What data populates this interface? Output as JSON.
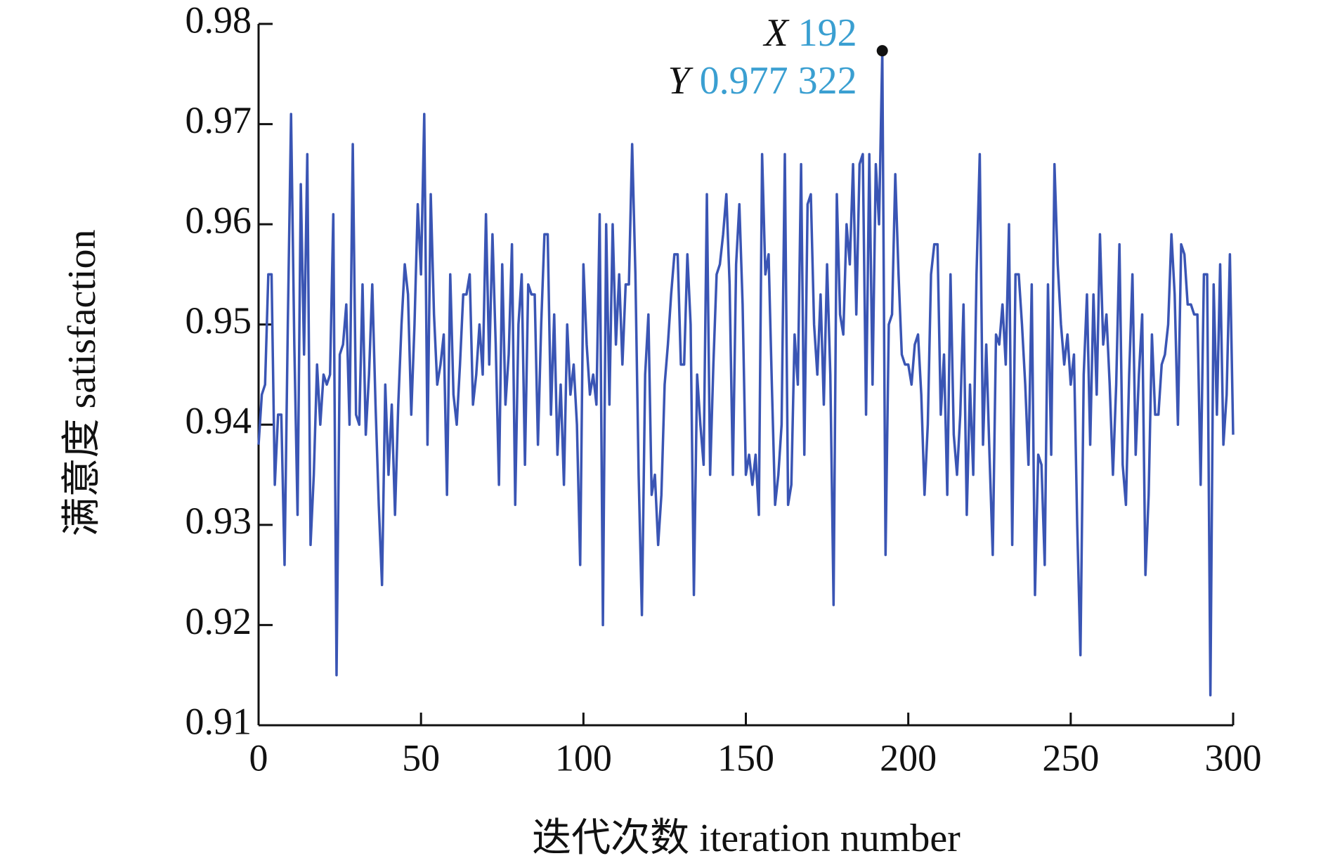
{
  "chart_data": {
    "type": "line",
    "ylabel": "满意度 satisfaction",
    "xlabel": "迭代次数 iteration number",
    "xlim": [
      0,
      300
    ],
    "xticks": [
      0,
      50,
      100,
      150,
      200,
      250,
      300
    ],
    "ylim": [
      0.91,
      0.98
    ],
    "yticks": [
      0.91,
      0.92,
      0.93,
      0.94,
      0.95,
      0.96,
      0.97,
      0.98
    ],
    "x": [
      0,
      1,
      2,
      3,
      4,
      5,
      6,
      7,
      8,
      9,
      10,
      11,
      12,
      13,
      14,
      15,
      16,
      17,
      18,
      19,
      20,
      21,
      22,
      23,
      24,
      25,
      26,
      27,
      28,
      29,
      30,
      31,
      32,
      33,
      34,
      35,
      36,
      37,
      38,
      39,
      40,
      41,
      42,
      43,
      44,
      45,
      46,
      47,
      48,
      49,
      50,
      51,
      52,
      53,
      54,
      55,
      56,
      57,
      58,
      59,
      60,
      61,
      62,
      63,
      64,
      65,
      66,
      67,
      68,
      69,
      70,
      71,
      72,
      73,
      74,
      75,
      76,
      77,
      78,
      79,
      80,
      81,
      82,
      83,
      84,
      85,
      86,
      87,
      88,
      89,
      90,
      91,
      92,
      93,
      94,
      95,
      96,
      97,
      98,
      99,
      100,
      101,
      102,
      103,
      104,
      105,
      106,
      107,
      108,
      109,
      110,
      111,
      112,
      113,
      114,
      115,
      116,
      117,
      118,
      119,
      120,
      121,
      122,
      123,
      124,
      125,
      126,
      127,
      128,
      129,
      130,
      131,
      132,
      133,
      134,
      135,
      136,
      137,
      138,
      139,
      140,
      141,
      142,
      143,
      144,
      145,
      146,
      147,
      148,
      149,
      150,
      151,
      152,
      153,
      154,
      155,
      156,
      157,
      158,
      159,
      160,
      161,
      162,
      163,
      164,
      165,
      166,
      167,
      168,
      169,
      170,
      171,
      172,
      173,
      174,
      175,
      176,
      177,
      178,
      179,
      180,
      181,
      182,
      183,
      184,
      185,
      186,
      187,
      188,
      189,
      190,
      191,
      192,
      193,
      194,
      195,
      196,
      197,
      198,
      199,
      200,
      201,
      202,
      203,
      204,
      205,
      206,
      207,
      208,
      209,
      210,
      211,
      212,
      213,
      214,
      215,
      216,
      217,
      218,
      219,
      220,
      221,
      222,
      223,
      224,
      225,
      226,
      227,
      228,
      229,
      230,
      231,
      232,
      233,
      234,
      235,
      236,
      237,
      238,
      239,
      240,
      241,
      242,
      243,
      244,
      245,
      246,
      247,
      248,
      249,
      250,
      251,
      252,
      253,
      254,
      255,
      256,
      257,
      258,
      259,
      260,
      261,
      262,
      263,
      264,
      265,
      266,
      267,
      268,
      269,
      270,
      271,
      272,
      273,
      274,
      275,
      276,
      277,
      278,
      279,
      280,
      281,
      282,
      283,
      284,
      285,
      286,
      287,
      288,
      289,
      290,
      291,
      292,
      293,
      294,
      295,
      296,
      297,
      298,
      299,
      300
    ],
    "series": [
      {
        "color": "#3a55b4",
        "values": [
          0.938,
          0.943,
          0.944,
          0.955,
          0.955,
          0.934,
          0.941,
          0.941,
          0.926,
          0.95,
          0.971,
          0.948,
          0.931,
          0.964,
          0.947,
          0.967,
          0.928,
          0.935,
          0.946,
          0.94,
          0.945,
          0.944,
          0.945,
          0.961,
          0.915,
          0.947,
          0.948,
          0.952,
          0.94,
          0.968,
          0.941,
          0.94,
          0.954,
          0.939,
          0.945,
          0.954,
          0.942,
          0.932,
          0.924,
          0.944,
          0.935,
          0.942,
          0.931,
          0.942,
          0.95,
          0.956,
          0.953,
          0.941,
          0.95,
          0.962,
          0.955,
          0.971,
          0.938,
          0.963,
          0.951,
          0.944,
          0.946,
          0.949,
          0.933,
          0.955,
          0.943,
          0.94,
          0.946,
          0.953,
          0.953,
          0.955,
          0.942,
          0.945,
          0.95,
          0.945,
          0.961,
          0.946,
          0.959,
          0.948,
          0.934,
          0.956,
          0.942,
          0.947,
          0.958,
          0.932,
          0.95,
          0.955,
          0.936,
          0.954,
          0.953,
          0.953,
          0.938,
          0.95,
          0.959,
          0.959,
          0.941,
          0.951,
          0.937,
          0.944,
          0.934,
          0.95,
          0.943,
          0.946,
          0.94,
          0.926,
          0.956,
          0.948,
          0.943,
          0.945,
          0.942,
          0.961,
          0.92,
          0.96,
          0.942,
          0.96,
          0.948,
          0.955,
          0.946,
          0.954,
          0.954,
          0.968,
          0.955,
          0.935,
          0.921,
          0.945,
          0.951,
          0.933,
          0.935,
          0.928,
          0.933,
          0.944,
          0.948,
          0.953,
          0.957,
          0.957,
          0.946,
          0.946,
          0.957,
          0.95,
          0.923,
          0.945,
          0.94,
          0.936,
          0.963,
          0.935,
          0.946,
          0.955,
          0.956,
          0.959,
          0.963,
          0.954,
          0.935,
          0.956,
          0.962,
          0.952,
          0.935,
          0.937,
          0.934,
          0.937,
          0.931,
          0.967,
          0.955,
          0.957,
          0.944,
          0.932,
          0.935,
          0.94,
          0.967,
          0.932,
          0.934,
          0.949,
          0.944,
          0.966,
          0.937,
          0.962,
          0.963,
          0.95,
          0.945,
          0.953,
          0.942,
          0.956,
          0.945,
          0.922,
          0.963,
          0.951,
          0.949,
          0.96,
          0.956,
          0.966,
          0.951,
          0.966,
          0.967,
          0.941,
          0.967,
          0.944,
          0.966,
          0.96,
          0.977322,
          0.927,
          0.95,
          0.951,
          0.965,
          0.955,
          0.947,
          0.946,
          0.946,
          0.944,
          0.948,
          0.949,
          0.943,
          0.933,
          0.94,
          0.955,
          0.958,
          0.958,
          0.941,
          0.947,
          0.933,
          0.955,
          0.939,
          0.935,
          0.941,
          0.952,
          0.931,
          0.944,
          0.935,
          0.955,
          0.967,
          0.938,
          0.948,
          0.937,
          0.927,
          0.949,
          0.948,
          0.952,
          0.946,
          0.96,
          0.928,
          0.955,
          0.955,
          0.95,
          0.944,
          0.936,
          0.954,
          0.923,
          0.937,
          0.936,
          0.926,
          0.954,
          0.937,
          0.966,
          0.956,
          0.95,
          0.946,
          0.949,
          0.944,
          0.947,
          0.93,
          0.917,
          0.945,
          0.953,
          0.938,
          0.953,
          0.943,
          0.959,
          0.948,
          0.951,
          0.944,
          0.935,
          0.944,
          0.958,
          0.936,
          0.932,
          0.945,
          0.955,
          0.937,
          0.945,
          0.951,
          0.925,
          0.933,
          0.949,
          0.941,
          0.941,
          0.946,
          0.947,
          0.95,
          0.959,
          0.953,
          0.94,
          0.958,
          0.957,
          0.952,
          0.952,
          0.951,
          0.951,
          0.934,
          0.955,
          0.955,
          0.913,
          0.954,
          0.941,
          0.956,
          0.938,
          0.943,
          0.957,
          0.939
        ]
      }
    ],
    "annotation": {
      "x": 192,
      "y": 0.977322,
      "x_name": "X",
      "y_name": "Y",
      "y_text": "0.977 322",
      "marker_color": "#111111",
      "text_color": "#3a9fd1"
    }
  }
}
